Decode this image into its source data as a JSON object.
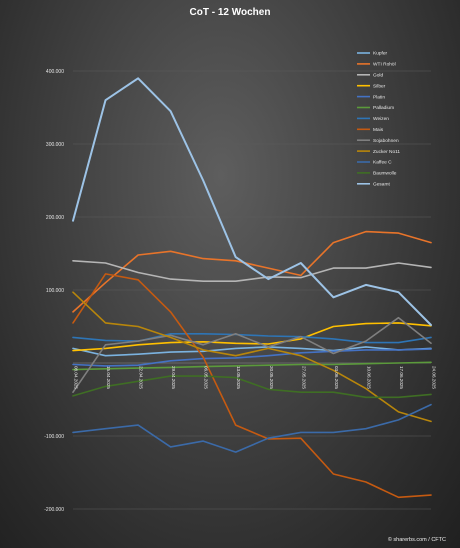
{
  "chart_data": {
    "type": "line",
    "title": "CoT - 12 Wochen",
    "x": [
      "08.04.2025",
      "15.04.2025",
      "22.04.2025",
      "29.04.2025",
      "06.05.2025",
      "13.05.2025",
      "20.05.2025",
      "27.05.2025",
      "03.06.2025",
      "10.06.2025",
      "17.06.2025",
      "24.06.2025"
    ],
    "yticks": [
      {
        "value": 400000,
        "label": "400.000"
      },
      {
        "value": 300000,
        "label": "300.000"
      },
      {
        "value": 200000,
        "label": "200.000"
      },
      {
        "value": 100000,
        "label": "100.000"
      },
      {
        "value": 0,
        "label": ""
      },
      {
        "value": -100000,
        "label": "-100.000"
      },
      {
        "value": -200000,
        "label": "-200.000"
      }
    ],
    "ylim": [
      -210000,
      420000
    ],
    "grid": true,
    "legend_position": "right",
    "series": [
      {
        "name": "Kupfer",
        "color": "#7bb3e0",
        "values": [
          20000,
          10000,
          12000,
          15000,
          16000,
          20000,
          22000,
          20000,
          17000,
          22000,
          18000,
          20000
        ]
      },
      {
        "name": "WTI Rohöl",
        "color": "#e8742a",
        "values": [
          70000,
          110000,
          148000,
          153000,
          143000,
          140000,
          130000,
          120000,
          165000,
          180000,
          178000,
          165000
        ]
      },
      {
        "name": "Gold",
        "color": "#b5b5b5",
        "values": [
          140000,
          137000,
          124000,
          115000,
          112000,
          112000,
          118000,
          117000,
          130000,
          130000,
          137000,
          131000
        ]
      },
      {
        "name": "Silber",
        "color": "#ffc000",
        "values": [
          17000,
          20000,
          25000,
          28000,
          29000,
          27000,
          26000,
          33000,
          50000,
          54000,
          55000,
          51000
        ]
      },
      {
        "name": "Platin",
        "color": "#4472c4",
        "values": [
          -2000,
          -4000,
          -3000,
          3000,
          6000,
          7000,
          10000,
          14000,
          16000,
          18000,
          18000,
          19000
        ]
      },
      {
        "name": "Palladium",
        "color": "#5b9a3b",
        "values": [
          -9000,
          -8000,
          -7000,
          -6000,
          -5000,
          -4000,
          -3000,
          -2000,
          -2000,
          -1000,
          0,
          1000
        ]
      },
      {
        "name": "Weizen",
        "color": "#2e75b6",
        "values": [
          35000,
          31000,
          30000,
          40000,
          40000,
          39000,
          37000,
          36000,
          33000,
          28000,
          28000,
          35000
        ]
      },
      {
        "name": "Mais",
        "color": "#c55a11",
        "values": [
          55000,
          122000,
          114000,
          70000,
          8000,
          -85000,
          -104000,
          -103000,
          -152000,
          -163000,
          -184000,
          -181000
        ]
      },
      {
        "name": "Sojabohnen",
        "color": "#7f7f7f",
        "values": [
          -40000,
          25000,
          30000,
          38000,
          25000,
          40000,
          22000,
          36000,
          13000,
          30000,
          62000,
          27000
        ]
      },
      {
        "name": "Zucker No11",
        "color": "#b8860b",
        "values": [
          97000,
          55000,
          50000,
          35000,
          18000,
          10000,
          20000,
          10000,
          -10000,
          -35000,
          -67000,
          -80000
        ]
      },
      {
        "name": "Kaffee C",
        "color": "#3b6aa8",
        "values": [
          -95000,
          -90000,
          -85000,
          -115000,
          -107000,
          -122000,
          -103000,
          -95000,
          -95000,
          -90000,
          -78000,
          -57000
        ]
      },
      {
        "name": "Baumwolle",
        "color": "#3f6e24",
        "values": [
          -45000,
          -32000,
          -25000,
          -18000,
          -18000,
          -20000,
          -36000,
          -40000,
          -40000,
          -47000,
          -47000,
          -43000
        ]
      },
      {
        "name": "Gesamt",
        "color": "#9dc3e6",
        "values": [
          195000,
          360000,
          390000,
          345000,
          250000,
          145000,
          115000,
          137000,
          90000,
          107000,
          97000,
          52000
        ]
      }
    ]
  },
  "footer": {
    "credit": "© sharerbs.com / CFTC"
  }
}
